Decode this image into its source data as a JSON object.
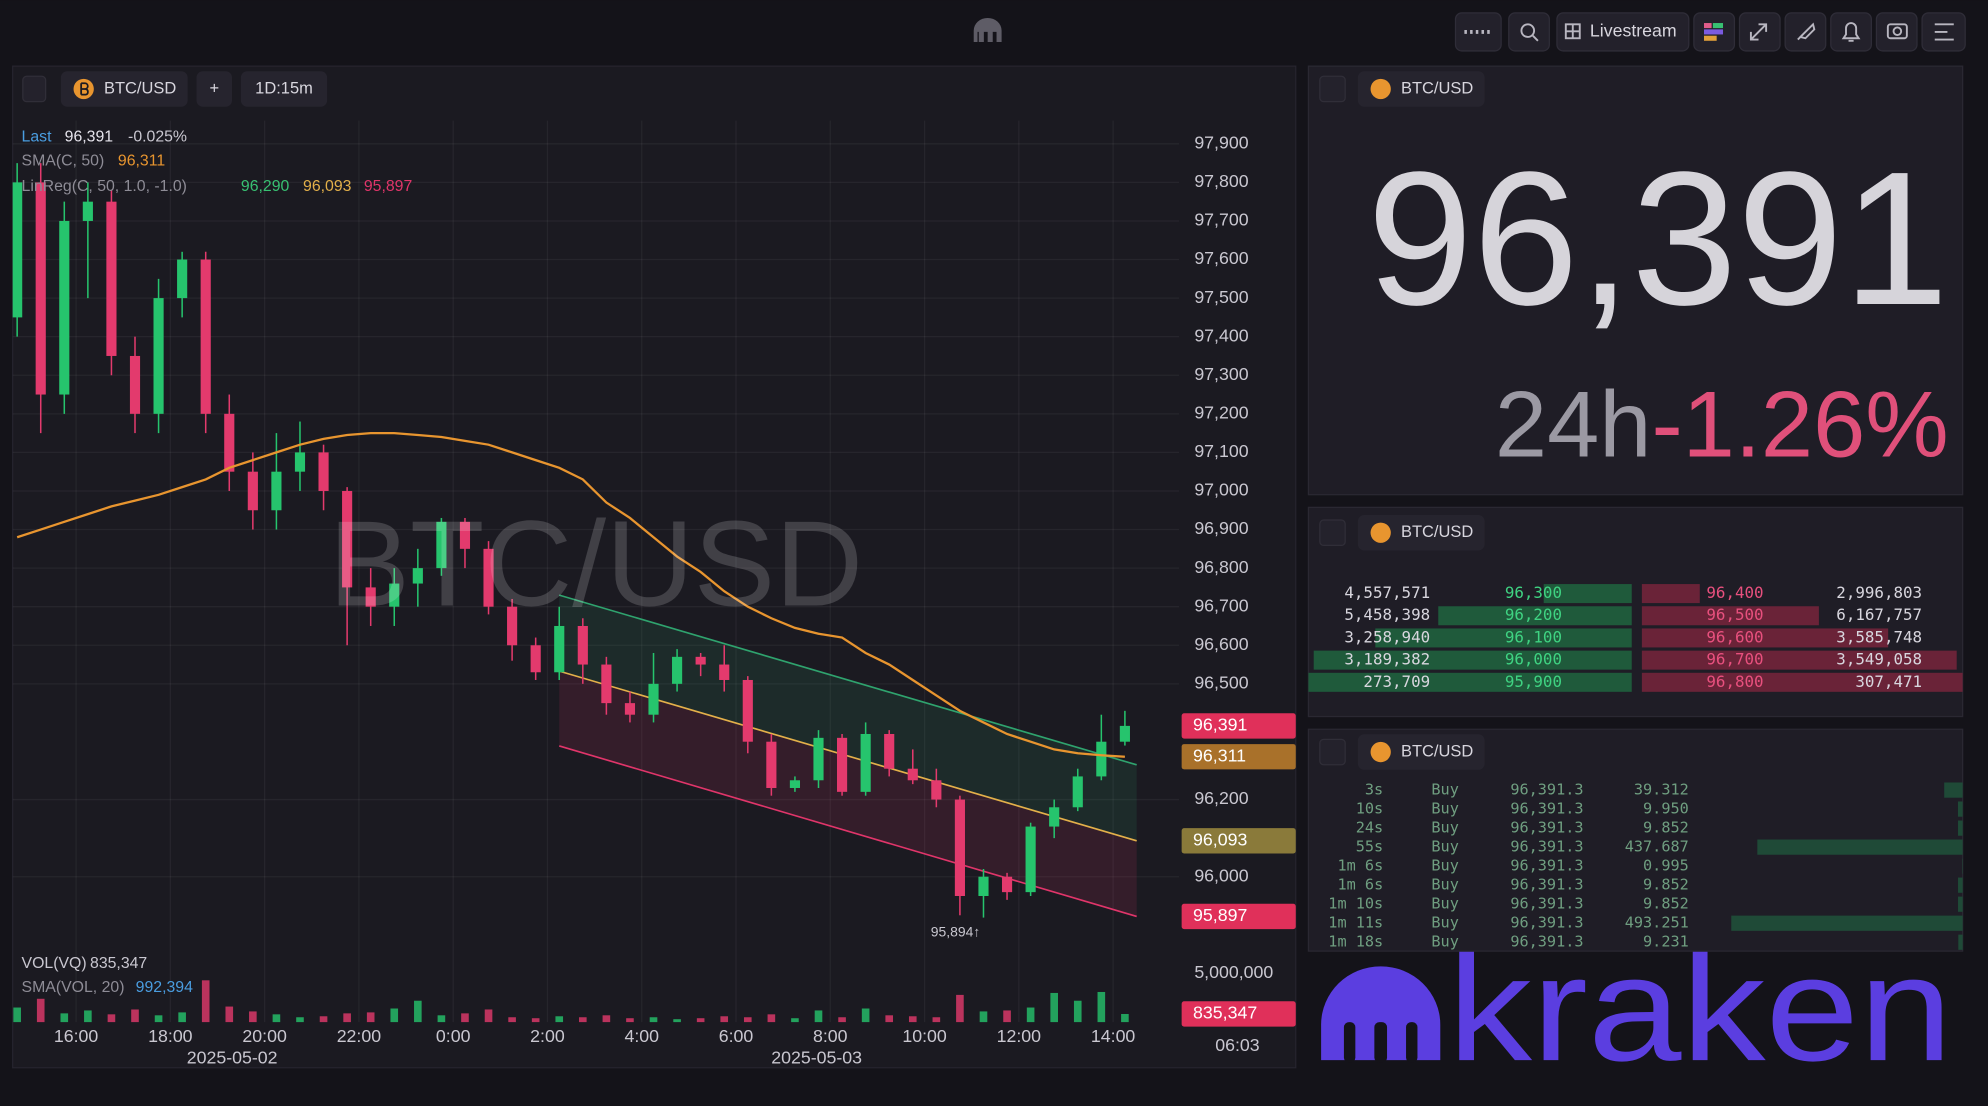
{
  "topbar": {
    "livestream": "Livestream"
  },
  "chart": {
    "symbol": "BTC/USD",
    "add": "+",
    "interval": "1D:15m",
    "watermark": "BTC/USD",
    "legend": {
      "last_label": "Last",
      "last": "96,391",
      "change": "-0.025%",
      "sma_label": "SMA(C, 50)",
      "sma": "96,311",
      "linreg_label": "LinReg(C, 50, 1.0, -1.0)",
      "linreg_upper": "96,290",
      "linreg_mid": "96,093",
      "linreg_lower": "95,897",
      "vol_label": "VOL(VQ)",
      "vol": "835,347",
      "vol_sma_label": "SMA(VOL, 20)",
      "vol_sma": "992,394"
    },
    "up_color": "#26c46d",
    "down_color": "#e33a6d",
    "xlim": [
      14.655,
      39.4
    ],
    "xticks": [
      {
        "value": 16,
        "label": "16:00"
      },
      {
        "value": 18,
        "label": "18:00"
      },
      {
        "value": 20,
        "label": "20:00"
      },
      {
        "value": 22,
        "label": "22:00"
      },
      {
        "value": 24,
        "label": "0:00"
      },
      {
        "value": 26,
        "label": "2:00"
      },
      {
        "value": 28,
        "label": "4:00"
      },
      {
        "value": 30,
        "label": "6:00"
      },
      {
        "value": 32,
        "label": "8:00"
      },
      {
        "value": 34,
        "label": "10:00"
      },
      {
        "value": 36,
        "label": "12:00"
      },
      {
        "value": 38,
        "label": "14:00"
      }
    ],
    "dates": [
      {
        "value": 19.31,
        "label": "2025-05-02"
      },
      {
        "value": 31.71,
        "label": "2025-05-03"
      }
    ],
    "ylim": [
      95840,
      97960
    ],
    "yticks": [
      {
        "value": 96000,
        "label": "96,000"
      },
      {
        "value": 96200,
        "label": "96,200"
      },
      {
        "value": 96500,
        "label": "96,500"
      },
      {
        "value": 96600,
        "label": "96,600"
      },
      {
        "value": 96700,
        "label": "96,700"
      },
      {
        "value": 96800,
        "label": "96,800"
      },
      {
        "value": 96900,
        "label": "96,900"
      },
      {
        "value": 97000,
        "label": "97,000"
      },
      {
        "value": 97100,
        "label": "97,100"
      },
      {
        "value": 97200,
        "label": "97,200"
      },
      {
        "value": 97300,
        "label": "97,300"
      },
      {
        "value": 97400,
        "label": "97,400"
      },
      {
        "value": 97500,
        "label": "97,500"
      },
      {
        "value": 97600,
        "label": "97,600"
      },
      {
        "value": 97700,
        "label": "97,700"
      },
      {
        "value": 97800,
        "label": "97,800"
      },
      {
        "value": 97900,
        "label": "97,900"
      }
    ],
    "vylim": [
      0,
      6000000
    ],
    "vyticks": [
      {
        "value": 5000000,
        "label": "5,000,000"
      }
    ],
    "candles": {
      "x": [
        14.75,
        15.25,
        15.75,
        16.25,
        16.75,
        17.25,
        17.75,
        18.25,
        18.75,
        19.25,
        19.75,
        20.25,
        20.75,
        21.25,
        21.75,
        22.25,
        22.75,
        23.25,
        23.75,
        24.25,
        24.75,
        25.25,
        25.75,
        26.25,
        26.75,
        27.25,
        27.75,
        28.25,
        28.75,
        29.25,
        29.75,
        30.25,
        30.75,
        31.25,
        31.75,
        32.25,
        32.75,
        33.25,
        33.75,
        34.25,
        34.75,
        35.25,
        35.75,
        36.25,
        36.75,
        37.25,
        37.75,
        38.25
      ],
      "open": [
        97450,
        97800,
        97250,
        97700,
        97750,
        97350,
        97200,
        97500,
        97600,
        97200,
        97050,
        96950,
        97050,
        97100,
        97000,
        96750,
        96700,
        96760,
        96800,
        96920,
        96850,
        96700,
        96600,
        96530,
        96650,
        96550,
        96450,
        96420,
        96500,
        96570,
        96550,
        96510,
        96350,
        96230,
        96250,
        96360,
        96220,
        96370,
        96280,
        96250,
        96200,
        95950,
        96000,
        95960,
        96130,
        96180,
        96260,
        96350
      ],
      "high": [
        97850,
        97850,
        97750,
        97800,
        97780,
        97400,
        97550,
        97620,
        97620,
        97250,
        97100,
        97150,
        97180,
        97120,
        97010,
        96800,
        96800,
        96850,
        96930,
        96930,
        96870,
        96720,
        96620,
        96700,
        96670,
        96570,
        96480,
        96580,
        96590,
        96580,
        96600,
        96520,
        96370,
        96260,
        96380,
        96370,
        96400,
        96380,
        96330,
        96280,
        96210,
        96020,
        96010,
        96140,
        96200,
        96280,
        96420,
        96430
      ],
      "low": [
        97400,
        97150,
        97200,
        97500,
        97300,
        97150,
        97150,
        97450,
        97150,
        97000,
        96900,
        96900,
        97000,
        96950,
        96600,
        96650,
        96650,
        96700,
        96780,
        96800,
        96680,
        96560,
        96510,
        96510,
        96500,
        96420,
        96400,
        96400,
        96480,
        96520,
        96480,
        96320,
        96210,
        96220,
        96230,
        96210,
        96210,
        96260,
        96240,
        96180,
        95900,
        95894,
        95940,
        95950,
        96100,
        96170,
        96250,
        96340
      ],
      "close": [
        97800,
        97250,
        97700,
        97750,
        97350,
        97200,
        97500,
        97600,
        97200,
        97050,
        96950,
        97050,
        97100,
        97000,
        96750,
        96700,
        96760,
        96800,
        96920,
        96850,
        96700,
        96600,
        96530,
        96650,
        96550,
        96450,
        96420,
        96500,
        96570,
        96550,
        96510,
        96350,
        96230,
        96250,
        96360,
        96220,
        96370,
        96280,
        96250,
        96200,
        95950,
        96000,
        95960,
        96130,
        96180,
        96260,
        96350,
        96391
      ],
      "volume": [
        1500000,
        2400000,
        900000,
        1200000,
        800000,
        1300000,
        700000,
        1000000,
        4300000,
        1600000,
        1100000,
        800000,
        500000,
        600000,
        900000,
        1000000,
        1400000,
        2200000,
        700000,
        900000,
        1300000,
        500000,
        400000,
        600000,
        500000,
        700000,
        400000,
        500000,
        300000,
        400000,
        600000,
        500000,
        800000,
        400000,
        1200000,
        500000,
        1400000,
        700000,
        600000,
        500000,
        2800000,
        1100000,
        1200000,
        1500000,
        3000000,
        2200000,
        3100000,
        835347
      ]
    },
    "sma": {
      "color": "#e8952f",
      "values": [
        96880,
        96900,
        96920,
        96940,
        96960,
        96975,
        96990,
        97010,
        97030,
        97060,
        97080,
        97100,
        97120,
        97135,
        97145,
        97150,
        97150,
        97145,
        97140,
        97130,
        97120,
        97100,
        97080,
        97060,
        97030,
        96970,
        96930,
        96880,
        96830,
        96790,
        96740,
        96700,
        96670,
        96645,
        96630,
        96620,
        96580,
        96550,
        96510,
        96470,
        96430,
        96400,
        96370,
        96350,
        96330,
        96320,
        96315,
        96311
      ]
    },
    "linreg": {
      "x": [
        26.25,
        38.5
      ],
      "upper": [
        96730,
        96290
      ],
      "mid": [
        96533,
        96093
      ],
      "lower": [
        96339,
        95897
      ],
      "upper_color": "#2fa36e",
      "mid_color": "#e3b04a",
      "lower_color": "#e0356a"
    },
    "low_label": "95,894↑",
    "price_tags": [
      {
        "value": 96391,
        "label": "96,391",
        "color": "#e0305a"
      },
      {
        "value": 96311,
        "label": "96,311",
        "color": "#a9712a"
      },
      {
        "value": 96093,
        "label": "96,093",
        "color": "#8a7a3a"
      },
      {
        "value": 95897,
        "label": "95,897",
        "color": "#e0305a"
      }
    ],
    "volume_tag": {
      "value": 835347,
      "label": "835,347",
      "color": "#e0305a"
    },
    "countdown": "06:03"
  },
  "ticker": {
    "symbol": "BTC/USD",
    "price": "96,391",
    "period": "24h",
    "change": "-1.26%"
  },
  "orderbook": {
    "symbol": "BTC/USD",
    "bid_color": "#1f5a3b",
    "ask_color": "#6a2338",
    "bids": [
      {
        "size": {
          "value": 4557571,
          "label": "4,557,571"
        },
        "price": "96,300"
      },
      {
        "size": {
          "value": 5458398,
          "label": "5,458,398"
        },
        "price": "96,200"
      },
      {
        "size": {
          "value": 3258940,
          "label": "3,258,940"
        },
        "price": "96,100"
      },
      {
        "size": {
          "value": 3189382,
          "label": "3,189,382"
        },
        "price": "96,000"
      },
      {
        "size": {
          "value": 273709,
          "label": "273,709"
        },
        "price": "95,900"
      }
    ],
    "asks": [
      {
        "size": {
          "value": 2996803,
          "label": "2,996,803"
        },
        "price": "96,400"
      },
      {
        "size": {
          "value": 6167757,
          "label": "6,167,757"
        },
        "price": "96,500"
      },
      {
        "size": {
          "value": 3585748,
          "label": "3,585,748"
        },
        "price": "96,600"
      },
      {
        "size": {
          "value": 3549058,
          "label": "3,549,058"
        },
        "price": "96,700"
      },
      {
        "size": {
          "value": 307471,
          "label": "307,471"
        },
        "price": "96,800"
      }
    ]
  },
  "trades": {
    "symbol": "BTC/USD",
    "rows": [
      {
        "time": "3s",
        "side": "Buy",
        "price": "96,391.3",
        "size": {
          "value": 39.312,
          "label": "39.312"
        }
      },
      {
        "time": "10s",
        "side": "Buy",
        "price": "96,391.3",
        "size": {
          "value": 9.95,
          "label": "9.950"
        }
      },
      {
        "time": "24s",
        "side": "Buy",
        "price": "96,391.3",
        "size": {
          "value": 9.852,
          "label": "9.852"
        }
      },
      {
        "time": "55s",
        "side": "Buy",
        "price": "96,391.3",
        "size": {
          "value": 437.687,
          "label": "437.687"
        }
      },
      {
        "time": "1m 6s",
        "side": "Buy",
        "price": "96,391.3",
        "size": {
          "value": 0.995,
          "label": "0.995"
        }
      },
      {
        "time": "1m 6s",
        "side": "Buy",
        "price": "96,391.3",
        "size": {
          "value": 9.852,
          "label": "9.852"
        }
      },
      {
        "time": "1m 10s",
        "side": "Buy",
        "price": "96,391.3",
        "size": {
          "value": 9.852,
          "label": "9.852"
        }
      },
      {
        "time": "1m 11s",
        "side": "Buy",
        "price": "96,391.3",
        "size": {
          "value": 493.251,
          "label": "493.251"
        }
      },
      {
        "time": "1m 18s",
        "side": "Buy",
        "price": "96,391.3",
        "size": {
          "value": 9.231,
          "label": "9.231"
        }
      }
    ]
  },
  "logo": "kraken"
}
